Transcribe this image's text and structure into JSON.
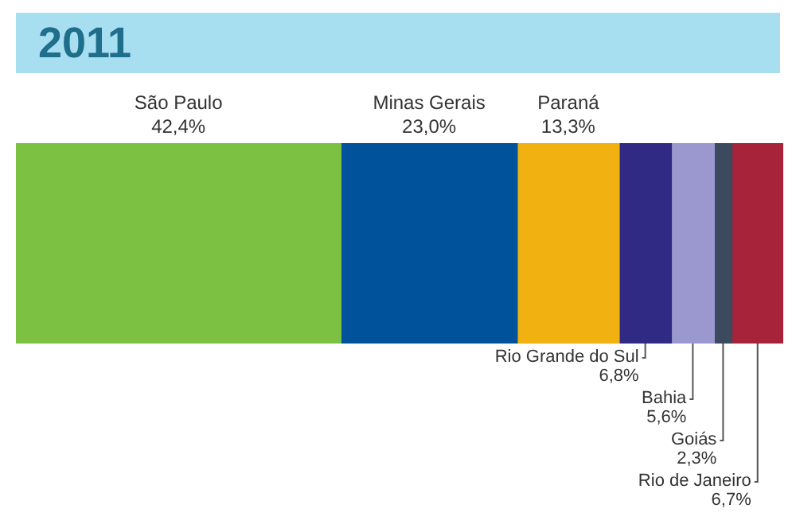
{
  "chart_data": {
    "type": "bar",
    "title": "2011",
    "orientation": "horizontal",
    "stacked": true,
    "categories": [
      null
    ],
    "tick_labels": false,
    "series": [
      {
        "name": "São Paulo",
        "color": "#7dc142",
        "values": [
          42.4
        ],
        "value_labels": [
          "42,4%"
        ]
      },
      {
        "name": "Minas Gerais",
        "color": "#00529b",
        "values": [
          23.0
        ],
        "value_labels": [
          "23,0%"
        ]
      },
      {
        "name": "Paraná",
        "color": "#f0b111",
        "values": [
          13.3
        ],
        "value_labels": [
          "13,3%"
        ]
      },
      {
        "name": "Rio Grande do Sul",
        "color": "#312a84",
        "values": [
          6.8
        ],
        "value_labels": [
          "6,8%"
        ]
      },
      {
        "name": "Bahia",
        "color": "#9a98cf",
        "values": [
          5.6
        ],
        "value_labels": [
          "5,6%"
        ]
      },
      {
        "name": "Goiás",
        "color": "#3b4a5e",
        "values": [
          2.3
        ],
        "value_labels": [
          "2,3%"
        ]
      },
      {
        "name": "Rio de Janeiro",
        "color": "#a6233a",
        "values": [
          6.7
        ],
        "value_labels": [
          "6,7%"
        ]
      }
    ]
  }
}
